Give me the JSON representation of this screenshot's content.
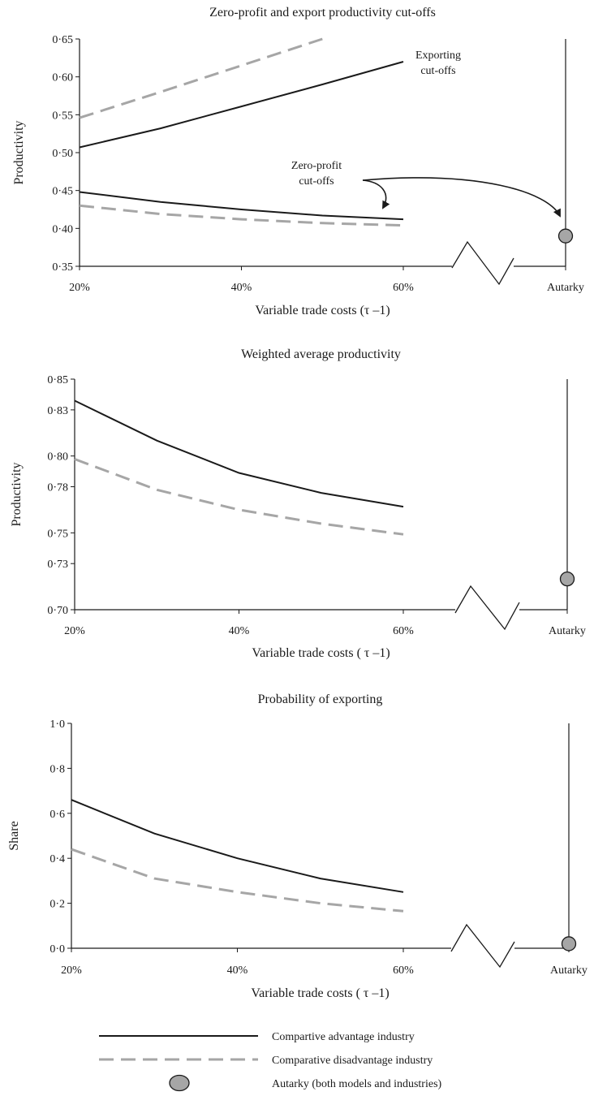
{
  "chart_data": [
    {
      "type": "line",
      "title": "Zero-profit and export productivity cut-offs",
      "xlabel": "Variable trade costs (τ –1)",
      "ylabel": "Productivity",
      "x_ticks": [
        "20%",
        "40%",
        "60%",
        "Autarky"
      ],
      "y_ticks": [
        "0·35",
        "0·40",
        "0·45",
        "0·50",
        "0·55",
        "0·60",
        "0·65"
      ],
      "ylim": [
        0.35,
        0.65
      ],
      "x": [
        20,
        30,
        40,
        50,
        60
      ],
      "series": [
        {
          "group": "Comparative advantage industry",
          "style": "solid",
          "color": "#1a1a1a",
          "x": [
            20,
            30,
            40,
            50,
            60
          ],
          "values": [
            0.507,
            0.532,
            0.561,
            0.59,
            0.62
          ]
        },
        {
          "group": "Comparative disadvantage industry",
          "style": "dashed",
          "color": "#a6a6a6",
          "x": [
            20,
            30,
            40,
            50
          ],
          "values": [
            0.546,
            0.58,
            0.615,
            0.65
          ]
        },
        {
          "group": "Comparative advantage industry",
          "style": "solid",
          "color": "#1a1a1a",
          "x": [
            20,
            30,
            40,
            50,
            60
          ],
          "values": [
            0.448,
            0.435,
            0.425,
            0.417,
            0.412
          ]
        },
        {
          "group": "Comparative disadvantage industry",
          "style": "dashed",
          "color": "#a6a6a6",
          "x": [
            20,
            30,
            40,
            50,
            60
          ],
          "values": [
            0.43,
            0.419,
            0.412,
            0.407,
            0.404
          ]
        }
      ],
      "autarky": 0.39,
      "annotations": [
        {
          "lines": [
            "Exporting",
            "cut-offs"
          ]
        },
        {
          "lines": [
            "Zero-profit",
            "cut-offs"
          ]
        }
      ]
    },
    {
      "type": "line",
      "title": "Weighted average productivity",
      "xlabel": "Variable trade costs ( τ –1)",
      "ylabel": "Productivity",
      "x_ticks": [
        "20%",
        "40%",
        "60%",
        "Autarky"
      ],
      "y_ticks": [
        "0·70",
        "0·73",
        "0·75",
        "0·78",
        "0·80",
        "0·83",
        "0·85"
      ],
      "ylim": [
        0.7,
        0.85
      ],
      "x": [
        20,
        30,
        40,
        50,
        60
      ],
      "series": [
        {
          "group": "Comparative advantage industry",
          "style": "solid",
          "color": "#1a1a1a",
          "x": [
            20,
            30,
            40,
            50,
            60
          ],
          "values": [
            0.836,
            0.81,
            0.789,
            0.776,
            0.767
          ]
        },
        {
          "group": "Comparative disadvantage industry",
          "style": "dashed",
          "color": "#a6a6a6",
          "x": [
            20,
            30,
            40,
            50,
            60
          ],
          "values": [
            0.798,
            0.778,
            0.765,
            0.756,
            0.749
          ]
        }
      ],
      "autarky": 0.72
    },
    {
      "type": "line",
      "title": "Probability of exporting",
      "xlabel": "Variable trade costs ( τ –1)",
      "ylabel": "Share",
      "x_ticks": [
        "20%",
        "40%",
        "60%",
        "Autarky"
      ],
      "y_ticks": [
        "0·0",
        "0·2",
        "0·4",
        "0·6",
        "0·8",
        "1·0"
      ],
      "ylim": [
        0.0,
        1.0
      ],
      "x": [
        20,
        30,
        40,
        50,
        60
      ],
      "series": [
        {
          "group": "Comparative advantage industry",
          "style": "solid",
          "color": "#1a1a1a",
          "x": [
            20,
            30,
            40,
            50,
            60
          ],
          "values": [
            0.66,
            0.51,
            0.4,
            0.31,
            0.25
          ]
        },
        {
          "group": "Comparative disadvantage industry",
          "style": "dashed",
          "color": "#a6a6a6",
          "x": [
            20,
            30,
            40,
            50,
            60
          ],
          "values": [
            0.44,
            0.31,
            0.25,
            0.2,
            0.165
          ]
        }
      ],
      "autarky": 0.02
    }
  ],
  "legend": [
    {
      "label": "Compartive advantage industry",
      "symbol": "solid-line",
      "color": "#1a1a1a"
    },
    {
      "label": "Comparative disadvantage industry",
      "symbol": "dashed-line",
      "color": "#a6a6a6"
    },
    {
      "label": "Autarky (both models and industries)",
      "symbol": "grey-circle",
      "color": "#a6a6a6"
    }
  ]
}
